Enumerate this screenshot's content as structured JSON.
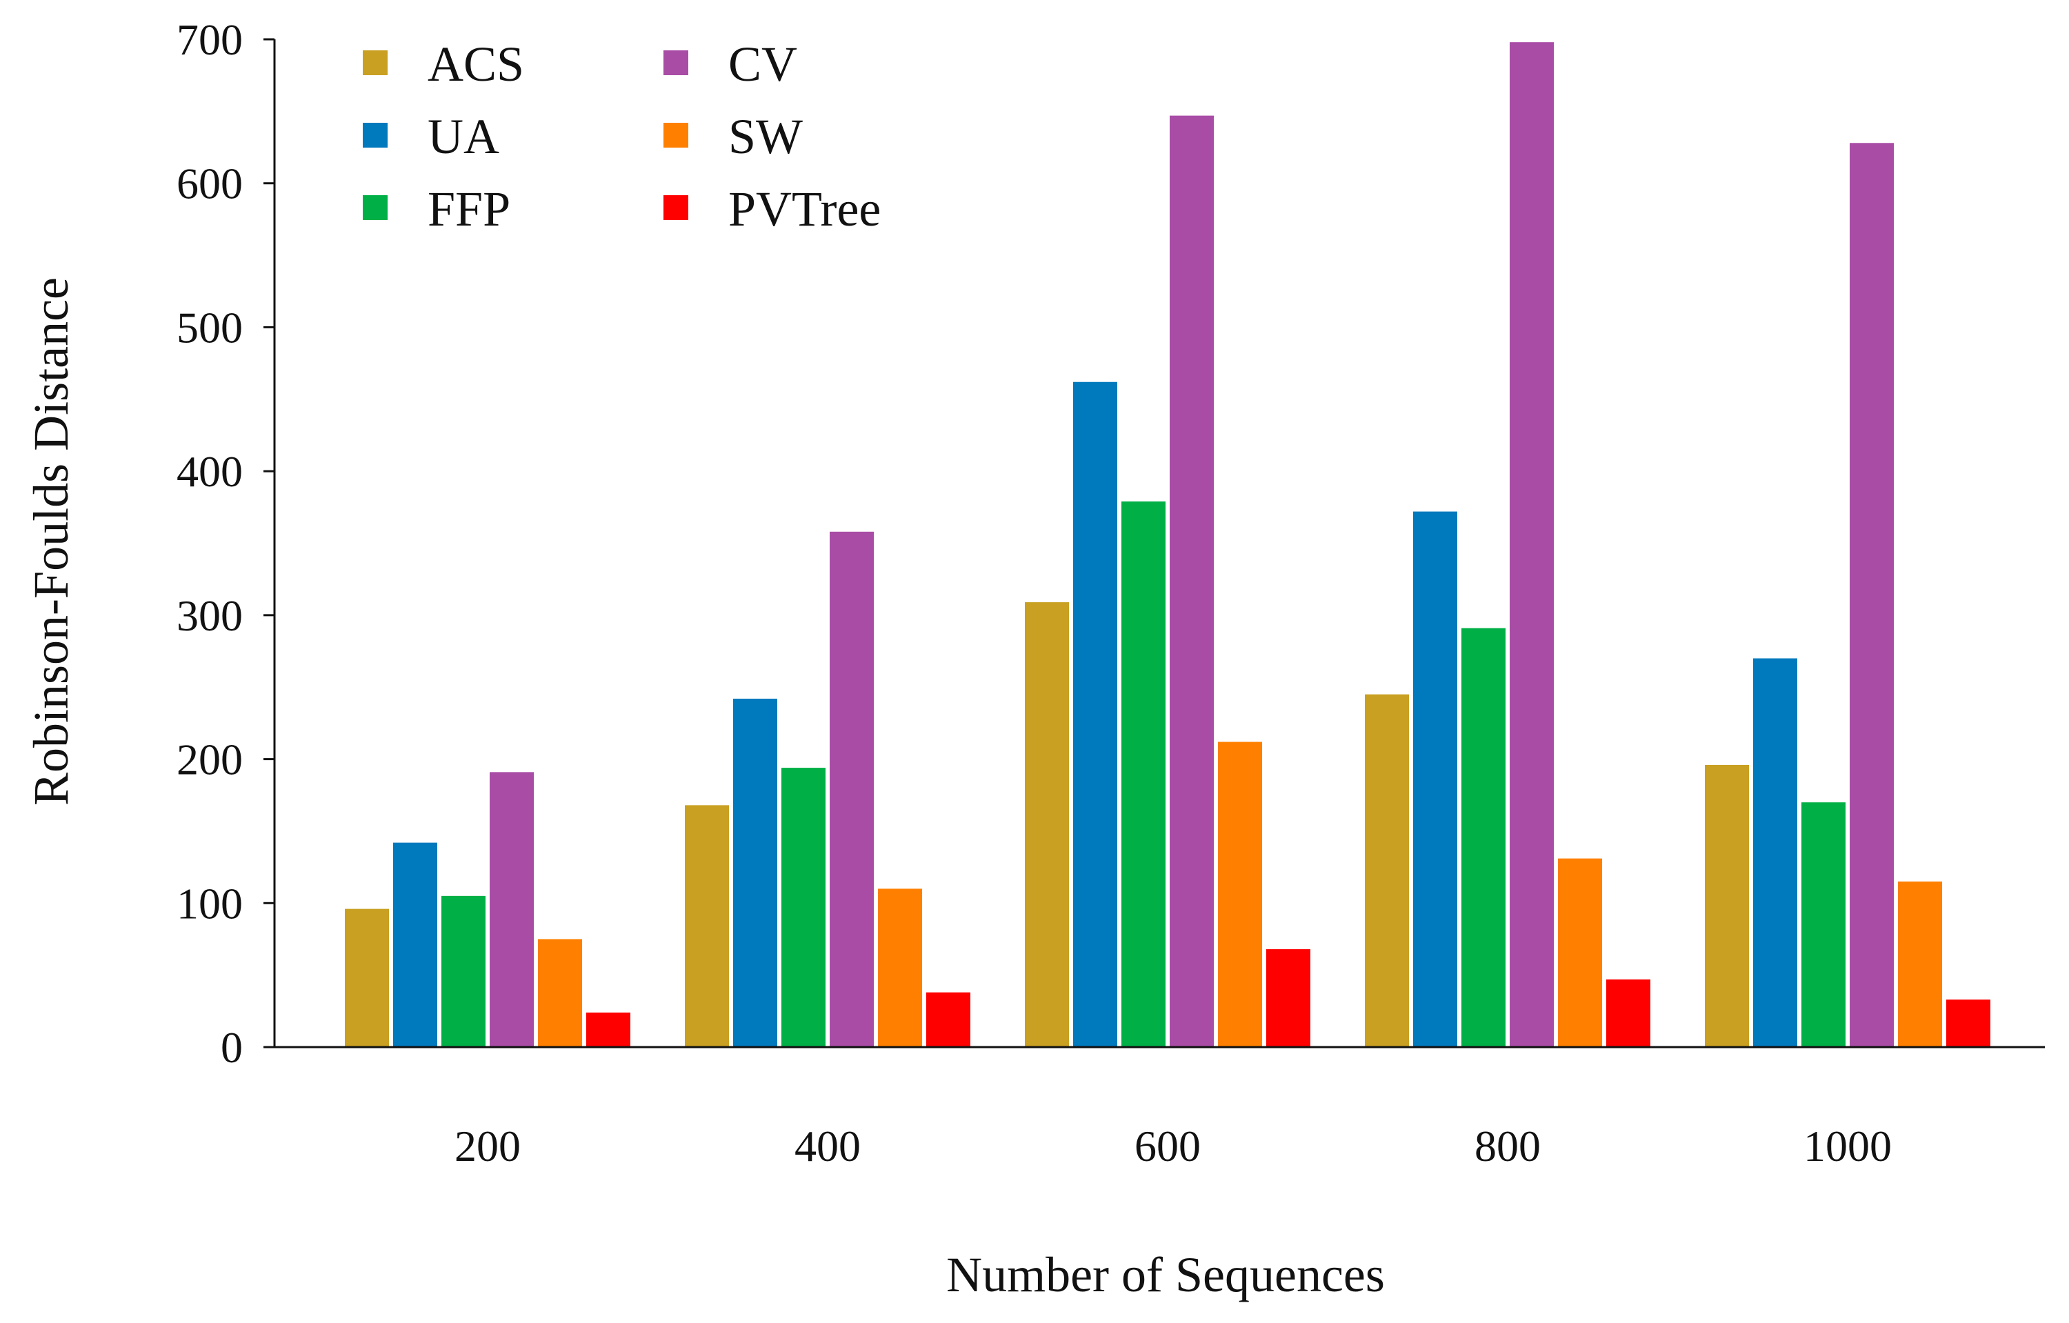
{
  "chart_data": {
    "type": "bar",
    "title": "",
    "xlabel": "Number of Sequences",
    "ylabel": "Robinson-Foulds Distance",
    "ylim": [
      0,
      700
    ],
    "yticks": [
      0,
      100,
      200,
      300,
      400,
      500,
      600,
      700
    ],
    "grid": false,
    "legend_position": "top-left",
    "categories": [
      "200",
      "400",
      "600",
      "800",
      "1000"
    ],
    "series": [
      {
        "name": "ACS",
        "color": "#C9A021",
        "values": [
          96,
          168,
          309,
          245,
          196
        ]
      },
      {
        "name": "UA",
        "color": "#0079BD",
        "values": [
          142,
          242,
          462,
          372,
          270
        ]
      },
      {
        "name": "FFP",
        "color": "#00B046",
        "values": [
          105,
          194,
          379,
          291,
          170
        ]
      },
      {
        "name": "CV",
        "color": "#A94CA6",
        "values": [
          191,
          358,
          647,
          698,
          628
        ]
      },
      {
        "name": "SW",
        "color": "#FF8000",
        "values": [
          75,
          110,
          212,
          131,
          115
        ]
      },
      {
        "name": "PVTree",
        "color": "#FF0000",
        "values": [
          24,
          38,
          68,
          47,
          33
        ]
      }
    ]
  }
}
